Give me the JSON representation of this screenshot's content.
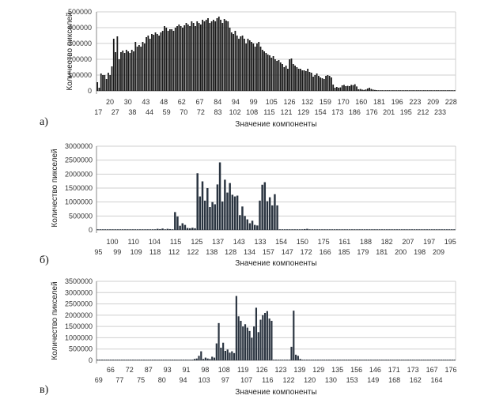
{
  "chart_data": [
    {
      "type": "bar",
      "panel_label": "а)",
      "xlabel": "Значение компоненты",
      "ylabel": "Количество пикселей",
      "ylim": [
        0,
        500000
      ],
      "yticks": [
        "500000",
        "400000",
        "300000",
        "200000",
        "100000",
        "0"
      ],
      "xticks_upper": [
        "20",
        "30",
        "43",
        "48",
        "62",
        "67",
        "84",
        "94",
        "99",
        "105",
        "126",
        "132",
        "159",
        "170",
        "160",
        "181",
        "196",
        "223",
        "209",
        "228"
      ],
      "xticks_lower": [
        "17",
        "27",
        "38",
        "44",
        "59",
        "70",
        "72",
        "83",
        "102",
        "108",
        "115",
        "121",
        "129",
        "154",
        "173",
        "186",
        "176",
        "201",
        "195",
        "212",
        "233"
      ],
      "bar_color": "#1a1a1a",
      "values": [
        55000,
        20000,
        110000,
        100000,
        100000,
        75000,
        115000,
        100000,
        155000,
        330000,
        245000,
        345000,
        200000,
        245000,
        255000,
        240000,
        260000,
        250000,
        240000,
        260000,
        250000,
        310000,
        280000,
        290000,
        280000,
        310000,
        300000,
        340000,
        350000,
        330000,
        360000,
        355000,
        370000,
        360000,
        350000,
        370000,
        380000,
        410000,
        400000,
        380000,
        390000,
        390000,
        380000,
        400000,
        410000,
        420000,
        410000,
        400000,
        415000,
        430000,
        420000,
        410000,
        440000,
        430000,
        410000,
        440000,
        430000,
        420000,
        450000,
        440000,
        450000,
        460000,
        430000,
        440000,
        450000,
        440000,
        460000,
        470000,
        450000,
        430000,
        455000,
        445000,
        440000,
        400000,
        370000,
        360000,
        380000,
        350000,
        330000,
        345000,
        350000,
        330000,
        300000,
        330000,
        320000,
        310000,
        300000,
        280000,
        300000,
        310000,
        280000,
        260000,
        250000,
        240000,
        230000,
        225000,
        210000,
        220000,
        200000,
        190000,
        195000,
        180000,
        170000,
        150000,
        160000,
        140000,
        200000,
        205000,
        170000,
        160000,
        150000,
        140000,
        140000,
        130000,
        130000,
        125000,
        140000,
        120000,
        115000,
        90000,
        100000,
        110000,
        95000,
        85000,
        80000,
        75000,
        95000,
        100000,
        95000,
        85000,
        40000,
        20000,
        25000,
        20000,
        22000,
        35000,
        38000,
        30000,
        32000,
        30000,
        38000,
        36000,
        42000,
        28000,
        10000,
        12000,
        8000,
        6000,
        9000,
        15000,
        20000,
        12000,
        8000,
        6000,
        5000,
        4000,
        4000,
        3000,
        3000,
        3000,
        3000,
        2000,
        2000,
        2000,
        2000,
        2000,
        2000,
        2000,
        2000,
        1500,
        1500,
        1500,
        1500,
        1500,
        1500,
        1500,
        1500,
        1500,
        1500,
        1500,
        1500,
        1500,
        1500,
        1500,
        1500,
        1500,
        1500,
        1500,
        1500,
        1500,
        1500,
        1500,
        1500,
        1500,
        1500,
        1500,
        1500,
        1500
      ]
    },
    {
      "type": "bar",
      "panel_label": "б)",
      "xlabel": "Значение компоненты",
      "ylabel": "Количество пикселей",
      "ylim": [
        0,
        3000000
      ],
      "yticks": [
        "3000000",
        "2500000",
        "2000000",
        "1500000",
        "1000000",
        "500000",
        "0"
      ],
      "xticks_upper": [
        "100",
        "110",
        "104",
        "115",
        "125",
        "137",
        "143",
        "133",
        "154",
        "150",
        "175",
        "161",
        "188",
        "182",
        "207",
        "197",
        "195"
      ],
      "xticks_lower": [
        "95",
        "99",
        "109",
        "118",
        "112",
        "122",
        "138",
        "128",
        "134",
        "157",
        "147",
        "172",
        "166",
        "185",
        "179",
        "181",
        "200",
        "198",
        "209"
      ],
      "bar_color": "#2a3440",
      "values": [
        6000,
        6000,
        6000,
        6000,
        6000,
        6000,
        6000,
        6000,
        6000,
        6000,
        6000,
        6000,
        6000,
        6000,
        6000,
        6000,
        6000,
        6000,
        6000,
        6000,
        6000,
        6000,
        6000,
        6000,
        40000,
        30000,
        50000,
        20000,
        40000,
        30000,
        20000,
        640000,
        480000,
        150000,
        240000,
        180000,
        70000,
        60000,
        80000,
        60000,
        2030000,
        1200000,
        1740000,
        1050000,
        1500000,
        820000,
        1000000,
        920000,
        1630000,
        2420000,
        1020000,
        1800000,
        1340000,
        1680000,
        1260000,
        1200000,
        1230000,
        530000,
        840000,
        500000,
        380000,
        240000,
        330000,
        180000,
        160000,
        1050000,
        1620000,
        1710000,
        1030000,
        1170000,
        880000,
        1280000,
        880000,
        6000,
        6000,
        6000,
        6000,
        6000,
        6000,
        6000,
        6000,
        6000,
        6000,
        30000,
        40000,
        20000,
        6000,
        6000,
        6000,
        6000,
        6000,
        6000,
        6000,
        6000,
        6000,
        6000,
        6000,
        6000,
        6000,
        6000,
        6000,
        6000,
        6000,
        6000,
        6000,
        6000,
        6000,
        6000,
        6000,
        6000,
        6000,
        6000,
        6000,
        6000,
        6000,
        6000,
        6000,
        6000,
        6000,
        6000,
        6000,
        6000,
        6000,
        6000,
        6000,
        6000,
        6000,
        6000,
        6000,
        6000,
        6000,
        6000,
        6000,
        6000,
        6000,
        6000,
        6000,
        6000,
        6000,
        6000,
        6000,
        6000,
        6000,
        6000
      ]
    },
    {
      "type": "bar",
      "panel_label": "в)",
      "xlabel": "Значение компоненты",
      "ylabel": "Количество пикселей",
      "ylim": [
        0,
        3500000
      ],
      "yticks": [
        "3500000",
        "3000000",
        "2500000",
        "2000000",
        "1500000",
        "1000000",
        "500000",
        "0"
      ],
      "xticks_upper": [
        "66",
        "72",
        "87",
        "93",
        "91",
        "98",
        "108",
        "119",
        "126",
        "123",
        "139",
        "129",
        "135",
        "156",
        "146",
        "171",
        "173",
        "167",
        "176"
      ],
      "xticks_lower": [
        "69",
        "77",
        "75",
        "80",
        "94",
        "103",
        "97",
        "107",
        "116",
        "122",
        "120",
        "130",
        "153",
        "149",
        "168",
        "162",
        "164"
      ],
      "bar_color": "#2a3440",
      "values": [
        8000,
        8000,
        8000,
        8000,
        8000,
        8000,
        8000,
        8000,
        8000,
        8000,
        8000,
        8000,
        8000,
        8000,
        8000,
        8000,
        8000,
        8000,
        8000,
        8000,
        8000,
        8000,
        8000,
        8000,
        8000,
        8000,
        8000,
        8000,
        8000,
        8000,
        8000,
        8000,
        8000,
        8000,
        8000,
        8000,
        8000,
        8000,
        8000,
        8000,
        8000,
        8000,
        8000,
        8000,
        60000,
        80000,
        200000,
        400000,
        60000,
        120000,
        80000,
        60000,
        160000,
        120000,
        750000,
        1650000,
        560000,
        780000,
        420000,
        480000,
        340000,
        400000,
        320000,
        2850000,
        1950000,
        1750000,
        1500000,
        1600000,
        1450000,
        1300000,
        1000000,
        1500000,
        2330000,
        1250000,
        1800000,
        2000000,
        2100000,
        2180000,
        1850000,
        1750000,
        8000,
        8000,
        8000,
        8000,
        8000,
        8000,
        8000,
        8000,
        600000,
        2200000,
        250000,
        200000,
        60000,
        8000,
        8000,
        8000,
        8000,
        8000,
        8000,
        8000,
        8000,
        8000,
        8000,
        8000,
        8000,
        8000,
        8000,
        8000,
        8000,
        8000,
        8000,
        8000,
        8000,
        8000,
        8000,
        8000,
        8000,
        8000,
        8000,
        8000,
        8000,
        8000,
        8000,
        8000,
        8000,
        8000,
        8000,
        8000,
        8000,
        8000,
        8000,
        8000,
        8000,
        8000,
        8000,
        8000,
        8000,
        8000,
        8000,
        8000,
        8000,
        8000,
        8000,
        8000,
        8000,
        8000,
        8000,
        8000,
        8000,
        8000,
        8000,
        8000,
        8000,
        8000,
        8000,
        8000,
        8000,
        8000,
        8000,
        8000,
        8000,
        8000,
        8000
      ]
    }
  ]
}
